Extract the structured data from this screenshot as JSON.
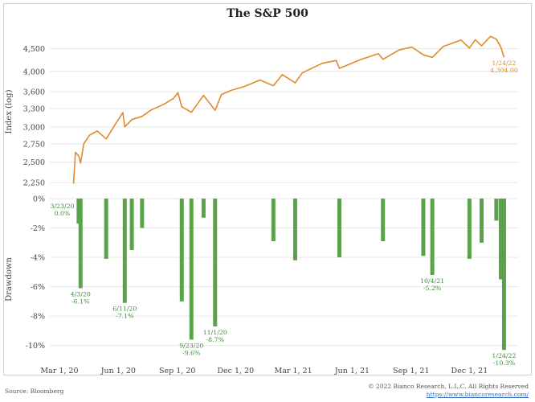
{
  "chart_data": [
    {
      "type": "line",
      "title": "The S&P 500",
      "ylabel": "Index (log)",
      "yscale": "log",
      "ylim": [
        2150,
        4900
      ],
      "yticks": [
        2250,
        2500,
        2750,
        3000,
        3300,
        3600,
        4000,
        4500
      ],
      "ytick_labels": [
        "2,250",
        "2,500",
        "2,750",
        "3,000",
        "3,300",
        "3,600",
        "4,000",
        "4,500"
      ],
      "xlim": [
        "2020-02-15",
        "2022-02-15"
      ],
      "series_color": "#e08a2c",
      "series": [
        {
          "x": [
            "2020-03-23",
            "2020-03-26",
            "2020-03-31",
            "2020-04-03",
            "2020-04-08",
            "2020-04-17",
            "2020-04-29",
            "2020-05-13",
            "2020-05-27",
            "2020-06-08",
            "2020-06-11",
            "2020-06-22",
            "2020-07-08",
            "2020-07-22",
            "2020-08-12",
            "2020-08-26",
            "2020-09-02",
            "2020-09-08",
            "2020-09-23",
            "2020-10-12",
            "2020-10-30",
            "2020-11-09",
            "2020-11-25",
            "2020-12-15",
            "2021-01-08",
            "2021-01-29",
            "2021-02-12",
            "2021-03-04",
            "2021-03-15",
            "2021-04-15",
            "2021-05-07",
            "2021-05-12",
            "2021-06-15",
            "2021-07-12",
            "2021-07-19",
            "2021-08-13",
            "2021-09-02",
            "2021-09-20",
            "2021-10-04",
            "2021-10-21",
            "2021-11-18",
            "2021-12-01",
            "2021-12-10",
            "2021-12-20",
            "2022-01-03",
            "2022-01-12",
            "2022-01-19",
            "2022-01-24"
          ],
          "y": [
            2237,
            2630,
            2584,
            2489,
            2750,
            2875,
            2940,
            2820,
            3036,
            3232,
            3002,
            3117,
            3169,
            3276,
            3380,
            3478,
            3580,
            3331,
            3237,
            3534,
            3270,
            3550,
            3630,
            3700,
            3825,
            3714,
            3934,
            3768,
            3968,
            4170,
            4232,
            4063,
            4255,
            4384,
            4258,
            4468,
            4537,
            4358,
            4300,
            4549,
            4704,
            4513,
            4712,
            4568,
            4796,
            4726,
            4533,
            4304
          ]
        }
      ],
      "annotations": [
        {
          "date": "1/24/22",
          "value": "4,304.00"
        }
      ]
    },
    {
      "type": "bar",
      "ylabel": "Drawdown",
      "ylim": [
        -11,
        0
      ],
      "yticks": [
        0,
        -2,
        -4,
        -6,
        -8,
        -10
      ],
      "ytick_labels": [
        "0%",
        "-2%",
        "-4%",
        "-6%",
        "-8%",
        "-10%"
      ],
      "xlim": [
        "2020-02-15",
        "2022-02-15"
      ],
      "xticks": [
        "2020-03-01",
        "2020-06-01",
        "2020-09-01",
        "2020-12-01",
        "2021-03-01",
        "2021-06-01",
        "2021-09-01",
        "2021-12-01"
      ],
      "xtick_labels": [
        "Mar 1, 20",
        "Jun 1, 20",
        "Sep 1, 20",
        "Dec 1, 20",
        "Mar 1, 21",
        "Jun 1, 21",
        "Sep 1, 21",
        "Dec 1, 21"
      ],
      "series_color": "#5aa34a",
      "series": [
        {
          "x": [
            "2020-03-23",
            "2020-03-26",
            "2020-03-31",
            "2020-04-03",
            "2020-04-08",
            "2020-04-17",
            "2020-04-29",
            "2020-05-13",
            "2020-05-27",
            "2020-06-08",
            "2020-06-11",
            "2020-06-22",
            "2020-07-08",
            "2020-07-22",
            "2020-08-12",
            "2020-08-26",
            "2020-09-02",
            "2020-09-08",
            "2020-09-23",
            "2020-10-12",
            "2020-10-30",
            "2020-11-09",
            "2020-11-25",
            "2020-12-15",
            "2021-01-08",
            "2021-01-29",
            "2021-02-12",
            "2021-03-04",
            "2021-03-15",
            "2021-04-15",
            "2021-05-07",
            "2021-05-12",
            "2021-06-15",
            "2021-07-12",
            "2021-07-19",
            "2021-08-13",
            "2021-09-02",
            "2021-09-20",
            "2021-10-04",
            "2021-10-21",
            "2021-11-18",
            "2021-12-01",
            "2021-12-10",
            "2021-12-20",
            "2022-01-03",
            "2022-01-12",
            "2022-01-19",
            "2022-01-24"
          ],
          "y": [
            0.0,
            0.0,
            -1.7,
            -6.1,
            0.0,
            0.0,
            0.0,
            -4.1,
            0.0,
            0.0,
            -7.1,
            -3.5,
            -2.0,
            0.0,
            0.0,
            0.0,
            0.0,
            -7.0,
            -9.6,
            -1.3,
            -8.7,
            0.0,
            0.0,
            0.0,
            0.0,
            -2.9,
            0.0,
            -4.2,
            0.0,
            0.0,
            0.0,
            -4.0,
            0.0,
            0.0,
            -2.9,
            0.0,
            0.0,
            -3.9,
            -5.2,
            0.0,
            0.0,
            -4.1,
            0.0,
            -3.0,
            0.0,
            -1.5,
            -5.5,
            -10.3
          ]
        }
      ],
      "annotations": [
        {
          "date": "3/23/20",
          "value": "0.0%"
        },
        {
          "date": "4/3/20",
          "value": "-6.1%"
        },
        {
          "date": "6/11/20",
          "value": "-7.1%"
        },
        {
          "date": "9/23/20",
          "value": "-9.6%"
        },
        {
          "date": "11/1/20",
          "value": "-8.7%"
        },
        {
          "date": "10/4/21",
          "value": "-5.2%"
        },
        {
          "date": "1/24/22",
          "value": "-10.3%"
        }
      ]
    }
  ],
  "footer": {
    "source": "Source: Bloomberg",
    "copyright": "© 2022 Bianco Research, L.L.C. All Rights Reserved",
    "website": "https://www.biancoresearch.com/"
  }
}
